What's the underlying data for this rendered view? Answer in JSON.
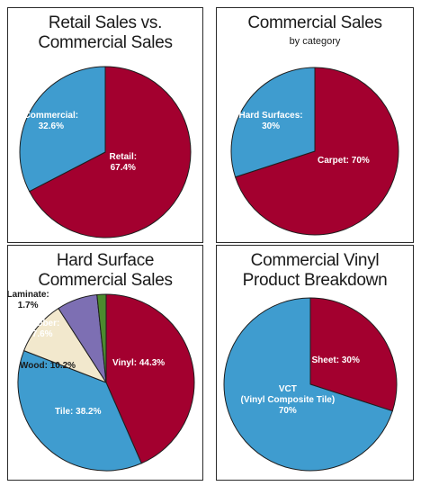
{
  "colors": {
    "crimson": "#a3002f",
    "blue": "#3f9ccf",
    "cream": "#f2e8cd",
    "lavender": "#7d6fb3",
    "green": "#4c8a2e",
    "outline": "#1e1e1e"
  },
  "chart_data": [
    {
      "type": "pie",
      "title": [
        "Retail Sales vs.",
        "Commercial Sales"
      ],
      "subtitle": "",
      "slices": [
        {
          "label": [
            "Retail:",
            "67.4%"
          ],
          "value": 67.4,
          "color": "crimson"
        },
        {
          "label": [
            "Commercial:",
            "32.6%"
          ],
          "value": 32.6,
          "color": "blue"
        }
      ]
    },
    {
      "type": "pie",
      "title": [
        "Commercial Sales"
      ],
      "subtitle": "by category",
      "slices": [
        {
          "label": [
            "Carpet: 70%"
          ],
          "value": 70,
          "color": "crimson"
        },
        {
          "label": [
            "Hard Surfaces:",
            "30%"
          ],
          "value": 30,
          "color": "blue"
        }
      ]
    },
    {
      "type": "pie",
      "title": [
        "Hard Surface",
        "Commercial Sales"
      ],
      "subtitle": "",
      "slices": [
        {
          "label": [
            "Vinyl: 44.3%"
          ],
          "value": 44.3,
          "color": "crimson"
        },
        {
          "label": [
            "Tile: 38.2%"
          ],
          "value": 38.2,
          "color": "blue"
        },
        {
          "label": [
            "Wood: 10.2%"
          ],
          "value": 10.2,
          "color": "cream"
        },
        {
          "label": [
            "Rubber:",
            "7.6%"
          ],
          "value": 7.6,
          "color": "lavender"
        },
        {
          "label": [
            "Laminate:",
            "1.7%"
          ],
          "value": 1.7,
          "color": "green"
        }
      ]
    },
    {
      "type": "pie",
      "title": [
        "Commercial Vinyl",
        "Product Breakdown"
      ],
      "subtitle": "",
      "slices": [
        {
          "label": [
            "Sheet: 30%"
          ],
          "value": 30,
          "color": "crimson"
        },
        {
          "label": [
            "VCT",
            "(Vinyl Composite Tile)",
            "70%"
          ],
          "value": 70,
          "color": "blue"
        }
      ]
    }
  ]
}
